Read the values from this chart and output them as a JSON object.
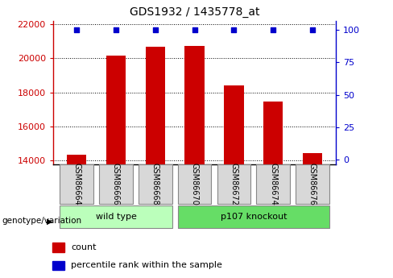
{
  "title": "GDS1932 / 1435778_at",
  "samples": [
    "GSM86664",
    "GSM86666",
    "GSM86668",
    "GSM86670",
    "GSM86672",
    "GSM86674",
    "GSM86676"
  ],
  "counts": [
    14350,
    20150,
    20700,
    20750,
    18400,
    17450,
    14450
  ],
  "ylim_left": [
    13800,
    22200
  ],
  "ylim_right": [
    -3.5,
    107
  ],
  "yticks_left": [
    14000,
    16000,
    18000,
    20000,
    22000
  ],
  "yticks_right": [
    0,
    25,
    50,
    75,
    100
  ],
  "bar_color": "#cc0000",
  "percentile_dot_color": "#0000cc",
  "bar_width": 0.5,
  "group_label": "genotype/variation",
  "legend_count_label": "count",
  "legend_percentile_label": "percentile rank within the sample",
  "tick_color_left": "#cc0000",
  "tick_color_right": "#0000cc",
  "wild_type_color": "#bbffbb",
  "knockout_color": "#66dd66",
  "sample_box_color": "#d8d8d8"
}
